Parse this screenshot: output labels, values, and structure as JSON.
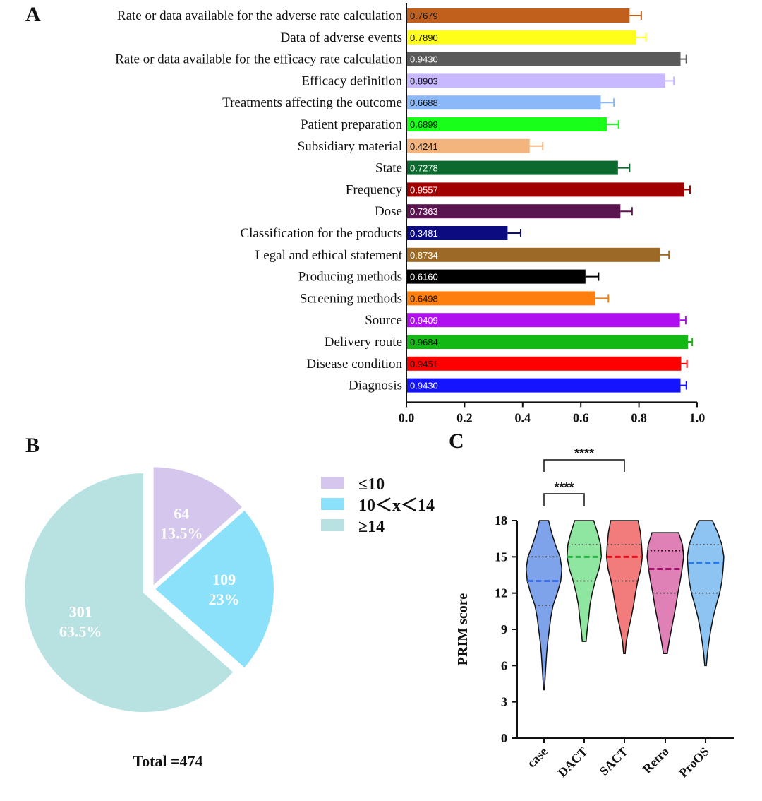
{
  "panels": {
    "a": "A",
    "b": "B",
    "c": "C"
  },
  "chart_data": [
    {
      "type": "bar",
      "orientation": "horizontal",
      "panel": "A",
      "categories": [
        "Rate or data available for the adverse rate calculation",
        "Data of adverse events",
        "Rate or data available for the efficacy rate calculation",
        "Efficacy definition",
        "Treatments affecting the outcome",
        "Patient preparation",
        "Subsidiary material",
        "State",
        "Frequency",
        "Dose",
        "Classification for the products",
        "Legal and ethical statement",
        "Producing methods",
        "Screening methods",
        "Source",
        "Delivery route",
        "Disease condition",
        "Diagnosis"
      ],
      "values": [
        0.7679,
        0.789,
        0.943,
        0.8903,
        0.6688,
        0.6899,
        0.4241,
        0.7278,
        0.9557,
        0.7363,
        0.3481,
        0.8734,
        0.616,
        0.6498,
        0.9409,
        0.9684,
        0.9451,
        0.943
      ],
      "labels": [
        "0.7679",
        "0.7890",
        "0.9430",
        "0.8903",
        "0.6688",
        "0.6899",
        "0.4241",
        "0.7278",
        "0.9557",
        "0.7363",
        "0.3481",
        "0.8734",
        "0.6160",
        "0.6498",
        "0.9409",
        "0.9684",
        "0.9451",
        "0.9430"
      ],
      "errors": [
        0.04,
        0.035,
        0.02,
        0.03,
        0.045,
        0.04,
        0.045,
        0.04,
        0.02,
        0.04,
        0.045,
        0.03,
        0.045,
        0.045,
        0.02,
        0.015,
        0.02,
        0.02
      ],
      "colors": [
        "#c0601c",
        "#ffff1a",
        "#5a5a5a",
        "#c7b8ff",
        "#8bb8f8",
        "#1aff1a",
        "#f4b47e",
        "#0c6a2e",
        "#a00000",
        "#5a1450",
        "#0c0c80",
        "#9c6a26",
        "#000000",
        "#ff7f0e",
        "#b010f0",
        "#14b814",
        "#ff0000",
        "#1414ff"
      ],
      "label_colors": [
        "#111111",
        "#111111",
        "#ffffff",
        "#111111",
        "#111111",
        "#111111",
        "#111111",
        "#ffffff",
        "#ffffff",
        "#ffffff",
        "#ffffff",
        "#ffffff",
        "#ffffff",
        "#111111",
        "#ffffff",
        "#111111",
        "#111111",
        "#ffffff"
      ],
      "xlim": [
        0,
        1.0
      ],
      "xticks": [
        "0.0",
        "0.2",
        "0.4",
        "0.6",
        "0.8",
        "1.0"
      ]
    },
    {
      "type": "pie",
      "panel": "B",
      "slices": [
        {
          "legend": "≤10",
          "count": "64",
          "percent": "13.5%",
          "value": 64,
          "color": "#d4c6ec"
        },
        {
          "legend": "10＜x＜14",
          "count": "109",
          "percent": "23%",
          "value": 109,
          "color": "#8be1fa"
        },
        {
          "legend": "≥14",
          "count": "301",
          "percent": "63.5%",
          "value": 301,
          "color": "#b8e2e2"
        }
      ],
      "exploded": "≥14",
      "total_label": "Total =474"
    },
    {
      "type": "violin",
      "panel": "C",
      "ylabel": "PRIM score",
      "ylim": [
        0,
        18
      ],
      "yticks": [
        "0",
        "3",
        "6",
        "9",
        "12",
        "15",
        "18"
      ],
      "categories": [
        "case",
        "DACT",
        "SACT",
        "Retro",
        "ProOS"
      ],
      "groups": [
        {
          "name": "case",
          "color": "#7fa3ea",
          "median_color": "#3b6ee8",
          "min": 4,
          "max": 18,
          "q1": 11,
          "median": 13,
          "q3": 15,
          "density": [
            [
              4,
              0.02
            ],
            [
              5,
              0.06
            ],
            [
              6,
              0.1
            ],
            [
              7,
              0.14
            ],
            [
              8,
              0.2
            ],
            [
              9,
              0.28
            ],
            [
              10,
              0.36
            ],
            [
              11,
              0.48
            ],
            [
              12,
              0.7
            ],
            [
              13,
              0.88
            ],
            [
              14,
              0.94
            ],
            [
              15,
              0.84
            ],
            [
              16,
              0.6
            ],
            [
              17,
              0.4
            ],
            [
              18,
              0.24
            ]
          ]
        },
        {
          "name": "DACT",
          "color": "#8fe6a0",
          "median_color": "#29b34a",
          "min": 8,
          "max": 18,
          "q1": 13,
          "median": 15,
          "q3": 16,
          "density": [
            [
              8,
              0.1
            ],
            [
              9,
              0.16
            ],
            [
              10,
              0.24
            ],
            [
              11,
              0.3
            ],
            [
              12,
              0.42
            ],
            [
              13,
              0.58
            ],
            [
              14,
              0.78
            ],
            [
              15,
              0.9
            ],
            [
              16,
              0.86
            ],
            [
              17,
              0.7
            ],
            [
              18,
              0.5
            ]
          ]
        },
        {
          "name": "SACT",
          "color": "#f27c7c",
          "median_color": "#e8101a",
          "min": 7,
          "max": 18,
          "q1": 13,
          "median": 15,
          "q3": 16,
          "density": [
            [
              7,
              0.04
            ],
            [
              8,
              0.1
            ],
            [
              9,
              0.22
            ],
            [
              10,
              0.36
            ],
            [
              11,
              0.48
            ],
            [
              12,
              0.58
            ],
            [
              13,
              0.7
            ],
            [
              14,
              0.86
            ],
            [
              15,
              0.94
            ],
            [
              16,
              0.9
            ],
            [
              17,
              0.84
            ],
            [
              18,
              0.72
            ]
          ]
        },
        {
          "name": "Retro",
          "color": "#df80b6",
          "median_color": "#a0106a",
          "min": 7,
          "max": 17,
          "q1": 12,
          "median": 14,
          "q3": 15.5,
          "density": [
            [
              7,
              0.1
            ],
            [
              8,
              0.2
            ],
            [
              9,
              0.32
            ],
            [
              10,
              0.44
            ],
            [
              11,
              0.56
            ],
            [
              12,
              0.66
            ],
            [
              13,
              0.78
            ],
            [
              14,
              0.88
            ],
            [
              15,
              0.96
            ],
            [
              16,
              0.9
            ],
            [
              17,
              0.7
            ]
          ]
        },
        {
          "name": "ProOS",
          "color": "#8ec4f2",
          "median_color": "#2a7ce8",
          "min": 6,
          "max": 18,
          "q1": 12,
          "median": 14.5,
          "q3": 16,
          "density": [
            [
              6,
              0.04
            ],
            [
              7,
              0.1
            ],
            [
              8,
              0.18
            ],
            [
              9,
              0.28
            ],
            [
              10,
              0.4
            ],
            [
              11,
              0.56
            ],
            [
              12,
              0.74
            ],
            [
              13,
              0.86
            ],
            [
              14,
              0.92
            ],
            [
              15,
              0.96
            ],
            [
              16,
              0.86
            ],
            [
              17,
              0.64
            ],
            [
              18,
              0.36
            ]
          ]
        }
      ],
      "significance": [
        {
          "from": "case",
          "to": "DACT",
          "label": "****"
        },
        {
          "from": "case",
          "to": "SACT",
          "label": "****"
        }
      ]
    }
  ]
}
